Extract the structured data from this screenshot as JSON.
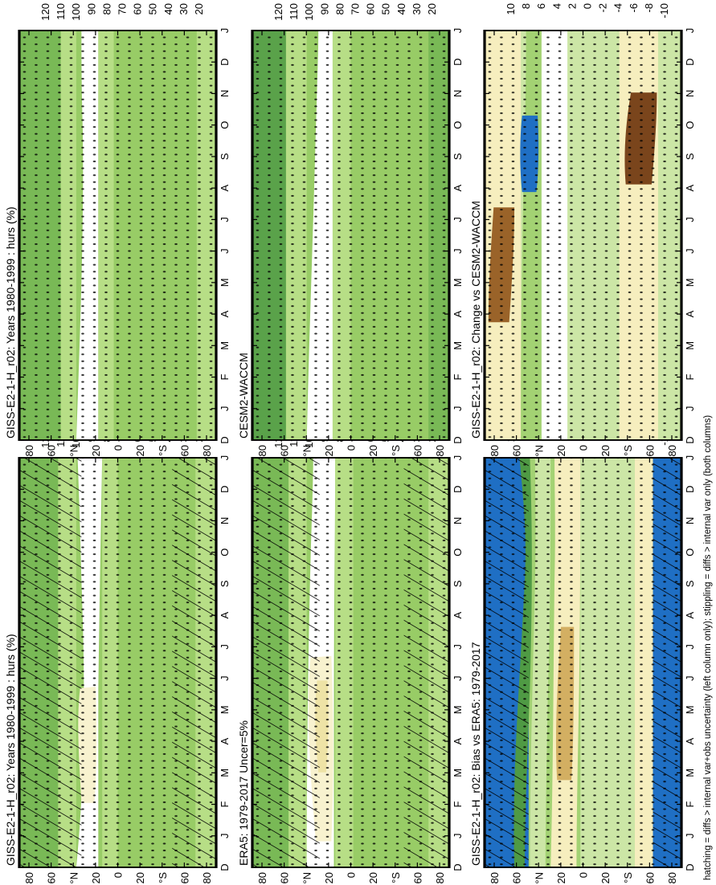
{
  "figure": {
    "footer": "hatching = diffs > internal var+obs uncertainty (left column only); stippling = diffs > internal var only (both columns)"
  },
  "chart_data": [
    {
      "type": "heatmap",
      "title": "GISS-E2-1-H_r02: Years 1980-1999 : hurs (%)",
      "x": [
        "D",
        "J",
        "F",
        "M",
        "A",
        "M",
        "J",
        "J",
        "A",
        "S",
        "O",
        "N",
        "D",
        "J"
      ],
      "y": [
        "80",
        "60",
        "°N",
        "20",
        "0",
        "20",
        "°S",
        "60",
        "80"
      ],
      "ylim": [
        -90,
        90
      ],
      "colorbar": {
        "ticks": [
          "120",
          "110",
          "100",
          "90",
          "80",
          "70",
          "60",
          "50",
          "40",
          "30",
          "20"
        ]
      },
      "overlays": [
        "hatching",
        "stippling"
      ]
    },
    {
      "type": "heatmap",
      "title": "GISS-E2-1-H_r02: Years 1980-1999 : hurs (%)",
      "x": [
        "D",
        "J",
        "F",
        "M",
        "A",
        "M",
        "J",
        "J",
        "A",
        "S",
        "O",
        "N",
        "D",
        "J"
      ],
      "y": [
        "80",
        "60",
        "°N",
        "20",
        "0",
        "20",
        "°S",
        "60",
        "80"
      ],
      "ylim": [
        -90,
        90
      ],
      "colorbar": {
        "ticks": [
          "120",
          "110",
          "100",
          "90",
          "80",
          "70",
          "60",
          "50",
          "40",
          "30",
          "20"
        ]
      },
      "overlays": [
        "stippling"
      ]
    },
    {
      "type": "heatmap",
      "title": "ERA5: 1979-2017 Uncer=5%",
      "x": [
        "D",
        "J",
        "F",
        "M",
        "A",
        "M",
        "J",
        "J",
        "A",
        "S",
        "O",
        "N",
        "D",
        "J"
      ],
      "y": [
        "80",
        "60",
        "°N",
        "20",
        "0",
        "20",
        "°S",
        "60",
        "80"
      ],
      "ylim": [
        -90,
        90
      ],
      "colorbar": {
        "ticks": [
          "120",
          "110",
          "100",
          "90",
          "80",
          "70",
          "60",
          "50",
          "40",
          "30",
          "20"
        ]
      },
      "overlays": [
        "hatching",
        "stippling"
      ]
    },
    {
      "type": "heatmap",
      "title": "CESM2-WACCM",
      "x": [
        "D",
        "J",
        "F",
        "M",
        "A",
        "M",
        "J",
        "J",
        "A",
        "S",
        "O",
        "N",
        "D",
        "J"
      ],
      "y": [
        "80",
        "60",
        "°N",
        "20",
        "0",
        "20",
        "°S",
        "60",
        "80"
      ],
      "ylim": [
        -90,
        90
      ],
      "colorbar": {
        "ticks": [
          "120",
          "110",
          "100",
          "90",
          "80",
          "70",
          "60",
          "50",
          "40",
          "30",
          "20"
        ]
      },
      "overlays": [
        "stippling"
      ]
    },
    {
      "type": "heatmap",
      "title": "GISS-E2-1-H_r02: Bias vs ERA5: 1979-2017",
      "x": [
        "D",
        "J",
        "F",
        "M",
        "A",
        "M",
        "J",
        "J",
        "A",
        "S",
        "O",
        "N",
        "D",
        "J"
      ],
      "y": [
        "80",
        "60",
        "°N",
        "20",
        "0",
        "20",
        "°S",
        "60",
        "80"
      ],
      "ylim": [
        -90,
        90
      ],
      "colorbar": {
        "ticks": [
          "10",
          "8",
          "6",
          "4",
          "2",
          "0",
          "-2",
          "-4",
          "-6",
          "-8",
          "-10"
        ]
      },
      "overlays": [
        "hatching",
        "stippling"
      ]
    },
    {
      "type": "heatmap",
      "title": "GISS-E2-1-H_r02: Change vs CESM2-WACCM",
      "x": [
        "D",
        "J",
        "F",
        "M",
        "A",
        "M",
        "J",
        "J",
        "A",
        "S",
        "O",
        "N",
        "D",
        "J"
      ],
      "y": [
        "80",
        "60",
        "°N",
        "20",
        "0",
        "20",
        "°S",
        "60",
        "80"
      ],
      "ylim": [
        -90,
        90
      ],
      "colorbar": {
        "ticks": [
          "10",
          "8",
          "6",
          "4",
          "2",
          "0",
          "-2",
          "-4",
          "-6",
          "-8",
          "-10"
        ]
      },
      "overlays": [
        "stippling"
      ]
    }
  ],
  "colors": {
    "abs_scale": [
      "#1f6fc4",
      "#8fc5ec",
      "#2e6e2e",
      "#3d8a3a",
      "#5aa24a",
      "#79b956",
      "#98cc66",
      "#b7de86",
      "#d5ec b0",
      "#ffffff",
      "#f8f2cf",
      "#eee3a6",
      "#dcc37a",
      "#c59a4e",
      "#a87333",
      "#8a5424",
      "#6b3d1a"
    ],
    "diff_scale": [
      "#1f6fc4",
      "#8fc5ec",
      "#2e6e2e",
      "#4f9a44",
      "#79b956",
      "#a3d273",
      "#cce6a6",
      "#ffffff",
      "#f6eebe",
      "#e7d48e",
      "#d3af62",
      "#b9853f",
      "#9a6329",
      "#7a451c",
      "#5a3114"
    ]
  }
}
